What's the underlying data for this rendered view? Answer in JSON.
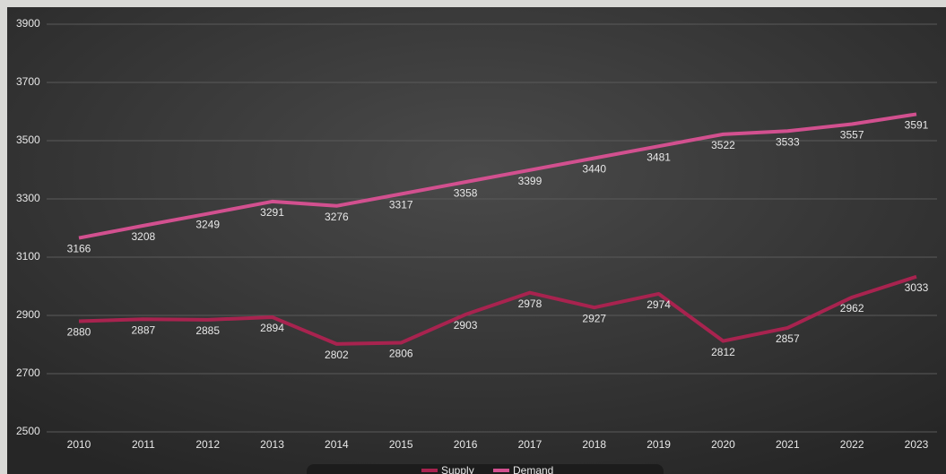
{
  "chart_data": {
    "type": "line",
    "categories": [
      "2010",
      "2011",
      "2012",
      "2013",
      "2014",
      "2015",
      "2016",
      "2017",
      "2018",
      "2019",
      "2020",
      "2021",
      "2022",
      "2023"
    ],
    "series": [
      {
        "name": "Supply",
        "color": "#a8234f",
        "values": [
          2880,
          2887,
          2885,
          2894,
          2802,
          2806,
          2903,
          2978,
          2927,
          2974,
          2812,
          2857,
          2962,
          3033
        ]
      },
      {
        "name": "Demand",
        "color": "#d2508f",
        "values": [
          3166,
          3208,
          3249,
          3291,
          3276,
          3317,
          3358,
          3399,
          3440,
          3481,
          3522,
          3533,
          3557,
          3591
        ]
      }
    ],
    "ylim": [
      2500,
      3900
    ],
    "yticks": [
      2500,
      2700,
      2900,
      3100,
      3300,
      3500,
      3700,
      3900
    ],
    "grid": true,
    "legend": "bottom"
  }
}
